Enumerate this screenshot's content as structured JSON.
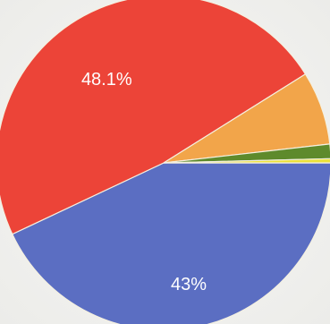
{
  "chart_data": {
    "type": "pie",
    "values": [
      43,
      48.1,
      7.1,
      1.4,
      0.4
    ],
    "colors": [
      "#5b6ec2",
      "#ec4438",
      "#f2a54a",
      "#5e8a2c",
      "#ece23a"
    ],
    "data_labels": [
      "43%",
      "48.1%",
      "",
      "",
      ""
    ],
    "start_angle_deg": 0,
    "direction": "clockwise"
  }
}
